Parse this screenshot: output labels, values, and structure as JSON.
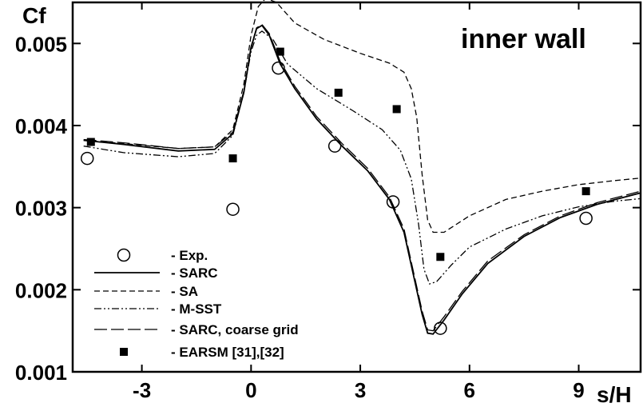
{
  "chart_data": {
    "type": "line",
    "title": "inner wall",
    "xlabel": "s/H",
    "ylabel": "Cf",
    "xlim": [
      -4.9,
      10.7
    ],
    "ylim": [
      0.001,
      0.0055
    ],
    "x_ticks": [
      -3,
      0,
      3,
      6,
      9
    ],
    "x_tick_labels": [
      "-3",
      "0",
      "3",
      "6",
      "9"
    ],
    "y_ticks": [
      0.001,
      0.002,
      0.003,
      0.004,
      0.005
    ],
    "y_tick_labels": [
      "0.001",
      "0.002",
      "0.003",
      "0.004",
      "0.005"
    ],
    "legend_position": "bottom-left",
    "series": [
      {
        "name": "- Exp.",
        "style": "open-circle",
        "x": [
          -4.5,
          -0.5,
          0.75,
          2.3,
          3.9,
          5.2,
          9.2
        ],
        "y": [
          0.0036,
          0.00298,
          0.0047,
          0.00375,
          0.00307,
          0.00153,
          0.00287
        ]
      },
      {
        "name": "- SARC",
        "style": "solid",
        "x": [
          -4.6,
          -3.5,
          -2.0,
          -1.0,
          -0.5,
          -0.2,
          0.0,
          0.15,
          0.3,
          0.5,
          0.8,
          1.2,
          1.8,
          2.5,
          3.2,
          3.8,
          4.2,
          4.5,
          4.7,
          4.85,
          5.0,
          5.3,
          5.8,
          6.5,
          7.5,
          8.5,
          9.5,
          10.7
        ],
        "y": [
          0.00382,
          0.00377,
          0.00369,
          0.00371,
          0.0039,
          0.0044,
          0.00495,
          0.00518,
          0.00522,
          0.0051,
          0.00475,
          0.00445,
          0.00408,
          0.00375,
          0.00345,
          0.0031,
          0.0027,
          0.0021,
          0.0017,
          0.00147,
          0.00146,
          0.00163,
          0.00195,
          0.00232,
          0.00265,
          0.00288,
          0.00304,
          0.00318
        ]
      },
      {
        "name": "- SA",
        "style": "dashed",
        "x": [
          -4.6,
          -3.5,
          -2.0,
          -1.0,
          -0.5,
          -0.2,
          0.0,
          0.2,
          0.4,
          0.7,
          1.2,
          2.0,
          3.0,
          3.8,
          4.2,
          4.4,
          4.55,
          4.7,
          4.85,
          5.0,
          5.3,
          6.0,
          7.0,
          8.0,
          9.0,
          10.0,
          10.7
        ],
        "y": [
          0.00382,
          0.00378,
          0.00372,
          0.00374,
          0.00395,
          0.0045,
          0.0051,
          0.00545,
          0.00555,
          0.0055,
          0.00525,
          0.00505,
          0.00488,
          0.00476,
          0.00465,
          0.00445,
          0.0041,
          0.0034,
          0.00285,
          0.0027,
          0.0027,
          0.0029,
          0.0031,
          0.0032,
          0.00328,
          0.00333,
          0.00336
        ]
      },
      {
        "name": "- M-SST",
        "style": "dash-dot-dot",
        "x": [
          -4.6,
          -3.5,
          -2.0,
          -1.0,
          -0.5,
          -0.2,
          0.0,
          0.15,
          0.3,
          0.6,
          1.0,
          1.8,
          2.8,
          3.6,
          4.1,
          4.4,
          4.6,
          4.75,
          4.9,
          5.1,
          5.5,
          6.0,
          7.0,
          8.0,
          9.0,
          10.0,
          10.7
        ],
        "y": [
          0.00375,
          0.00367,
          0.00362,
          0.00366,
          0.00388,
          0.0044,
          0.0049,
          0.0051,
          0.00515,
          0.00505,
          0.00475,
          0.00445,
          0.00418,
          0.00395,
          0.0037,
          0.00335,
          0.0028,
          0.00225,
          0.00207,
          0.0021,
          0.0023,
          0.00252,
          0.00274,
          0.0029,
          0.00301,
          0.00308,
          0.00311
        ]
      },
      {
        "name": "- SARC, coarse grid",
        "style": "long-dash",
        "x": [
          -4.6,
          -3.5,
          -2.0,
          -1.0,
          -0.5,
          -0.2,
          0.0,
          0.15,
          0.3,
          0.5,
          0.8,
          1.2,
          1.8,
          2.5,
          3.2,
          3.8,
          4.2,
          4.5,
          4.7,
          4.85,
          5.0,
          5.3,
          5.8,
          6.5,
          7.5,
          8.5,
          9.5,
          10.7
        ],
        "y": [
          0.00383,
          0.00379,
          0.00372,
          0.00374,
          0.00392,
          0.00442,
          0.00496,
          0.00519,
          0.00523,
          0.00512,
          0.00478,
          0.00448,
          0.00411,
          0.00378,
          0.00348,
          0.00313,
          0.00274,
          0.00214,
          0.00174,
          0.00151,
          0.0015,
          0.00167,
          0.00198,
          0.00235,
          0.00267,
          0.0029,
          0.00306,
          0.0032
        ]
      },
      {
        "name": "- EARSM [31],[32]",
        "style": "filled-square",
        "x": [
          -4.4,
          -0.5,
          0.8,
          2.4,
          4.0,
          5.2,
          9.2
        ],
        "y": [
          0.0038,
          0.0036,
          0.0049,
          0.0044,
          0.0042,
          0.0024,
          0.0032
        ]
      }
    ]
  }
}
